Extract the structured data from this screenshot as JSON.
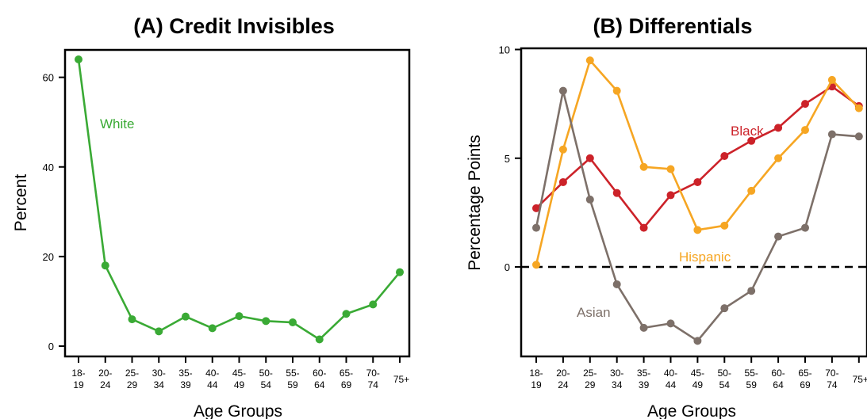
{
  "chart_data": [
    {
      "type": "line",
      "title": "(A) Credit Invisibles",
      "xlabel": "Age Groups",
      "ylabel": "Percent",
      "ylim": [
        0,
        64
      ],
      "yticks": [
        "0",
        "20",
        "40",
        "60"
      ],
      "categories": [
        "18-\n19",
        "20-\n24",
        "25-\n29",
        "30-\n34",
        "35-\n39",
        "40-\n44",
        "45-\n49",
        "50-\n54",
        "55-\n59",
        "60-\n64",
        "65-\n69",
        "70-\n74",
        "75+"
      ],
      "series": [
        {
          "name": "White",
          "color": "#3aaa35",
          "values": [
            64,
            18,
            6,
            3.3,
            6.6,
            4,
            6.7,
            5.6,
            5.3,
            1.5,
            7.2,
            9.3,
            16.5
          ]
        }
      ],
      "grid": false,
      "legend": "inline labels"
    },
    {
      "type": "line",
      "title": "(B) Differentials",
      "xlabel": "Age Groups",
      "ylabel": "Percentage Points",
      "ylim": [
        -3.5,
        10
      ],
      "yticks": [
        "0",
        "5",
        "10"
      ],
      "reference_line": 0,
      "categories": [
        "18-\n19",
        "20-\n24",
        "25-\n29",
        "30-\n34",
        "35-\n39",
        "40-\n44",
        "45-\n49",
        "50-\n54",
        "55-\n59",
        "60-\n64",
        "65-\n69",
        "70-\n74",
        "75+"
      ],
      "series": [
        {
          "name": "Black",
          "color": "#cc2229",
          "values": [
            2.7,
            3.9,
            5.0,
            3.4,
            1.8,
            3.3,
            3.9,
            5.1,
            5.8,
            6.4,
            7.5,
            8.3,
            7.4
          ]
        },
        {
          "name": "Hispanic",
          "color": "#f6a623",
          "values": [
            0.1,
            5.4,
            9.5,
            8.1,
            4.6,
            4.5,
            1.7,
            1.9,
            3.5,
            5.0,
            6.3,
            8.6,
            7.3
          ]
        },
        {
          "name": "Asian",
          "color": "#7d7069",
          "values": [
            1.8,
            8.1,
            3.1,
            -0.8,
            -2.8,
            -2.6,
            -3.4,
            -1.9,
            -1.1,
            1.4,
            1.8,
            6.1,
            6.0
          ]
        }
      ],
      "grid": false,
      "legend": "inline labels"
    }
  ]
}
